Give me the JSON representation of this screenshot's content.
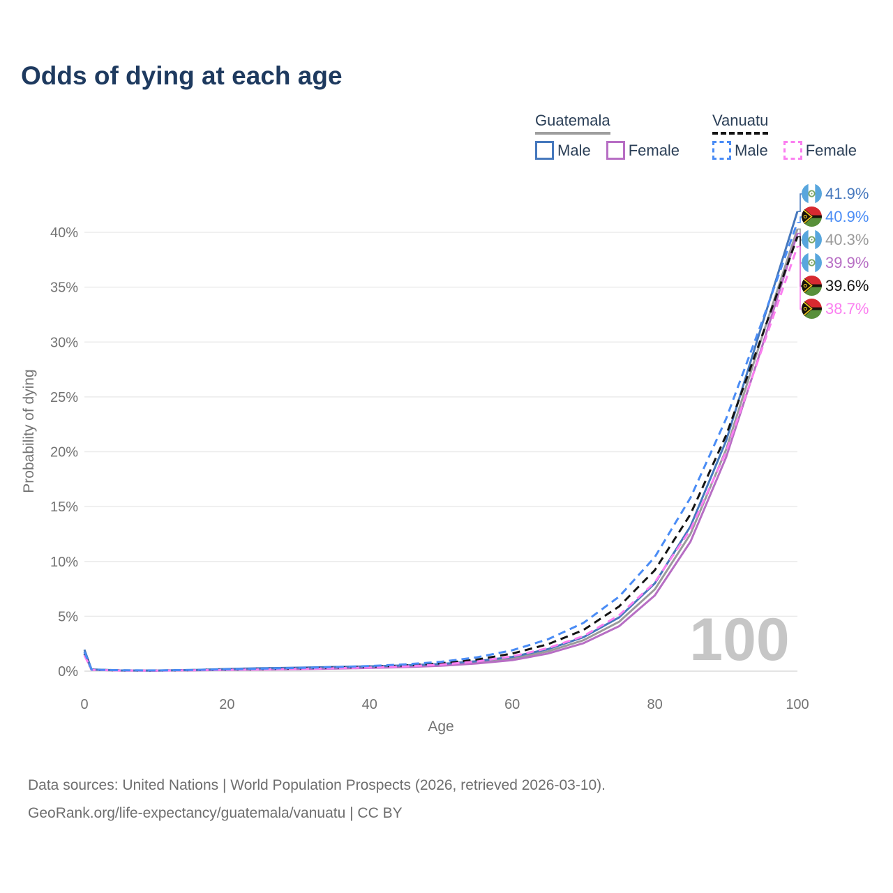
{
  "legend": {
    "countries": [
      {
        "label": "Guatemala",
        "line_style": "solid",
        "underline_color": "#9e9e9e",
        "items": [
          {
            "label": "Male",
            "color": "#4678bd"
          },
          {
            "label": "Female",
            "color": "#b76ec4"
          }
        ]
      },
      {
        "label": "Vanuatu",
        "line_style": "dashed",
        "underline_color": "#141414",
        "items": [
          {
            "label": "Male",
            "color": "#4a8cf5"
          },
          {
            "label": "Female",
            "color": "#fb7ff0"
          }
        ]
      }
    ]
  },
  "chart_data": {
    "type": "line",
    "title": "Odds of dying at each age",
    "xlabel": "Age",
    "ylabel": "Probability of dying",
    "xlim": [
      0,
      100
    ],
    "ylim_pct": [
      0,
      44
    ],
    "xticks": [
      0,
      20,
      40,
      60,
      80,
      100
    ],
    "ytick_values": [
      0,
      5,
      10,
      15,
      20,
      25,
      30,
      35,
      40
    ],
    "ytick_labels": [
      "0%",
      "5%",
      "10%",
      "15%",
      "20%",
      "25%",
      "30%",
      "35%",
      "40%"
    ],
    "grid": "horizontal",
    "legend_position": "top-right",
    "watermark": {
      "text": "100",
      "color": "#c6c6c6"
    },
    "x_ages": [
      0,
      1,
      5,
      10,
      15,
      20,
      25,
      30,
      35,
      40,
      45,
      50,
      55,
      60,
      65,
      70,
      75,
      80,
      85,
      90,
      95,
      100
    ],
    "series": [
      {
        "name": "guatemala-male",
        "country": "Guatemala",
        "sex": "Male",
        "line": "solid",
        "color": "#4678bd",
        "end_label": "41.9%",
        "values_pct": [
          1.95,
          0.16,
          0.07,
          0.06,
          0.1,
          0.2,
          0.27,
          0.32,
          0.38,
          0.44,
          0.52,
          0.65,
          0.9,
          1.3,
          2.0,
          3.1,
          4.9,
          8.0,
          13.2,
          21.0,
          31.5,
          41.9
        ]
      },
      {
        "name": "guatemala-female",
        "country": "Guatemala",
        "sex": "Female",
        "line": "solid",
        "color": "#b76ec4",
        "end_label": "39.9%",
        "values_pct": [
          1.6,
          0.13,
          0.055,
          0.05,
          0.07,
          0.11,
          0.14,
          0.18,
          0.23,
          0.29,
          0.37,
          0.49,
          0.7,
          1.0,
          1.6,
          2.55,
          4.1,
          6.9,
          11.8,
          19.5,
          29.5,
          39.9
        ]
      },
      {
        "name": "guatemala-both",
        "country": "Guatemala",
        "sex": "Both",
        "line": "solid",
        "color": "#9b9b9b",
        "end_label": "40.3%",
        "values_pct": [
          1.78,
          0.145,
          0.06,
          0.055,
          0.085,
          0.155,
          0.205,
          0.25,
          0.3,
          0.36,
          0.44,
          0.57,
          0.8,
          1.15,
          1.8,
          2.82,
          4.5,
          7.45,
          12.5,
          20.2,
          30.4,
          40.3
        ]
      },
      {
        "name": "vanuatu-male",
        "country": "Vanuatu",
        "sex": "Male",
        "line": "dashed",
        "color": "#4a8cf5",
        "end_label": "40.9%",
        "values_pct": [
          1.75,
          0.14,
          0.08,
          0.07,
          0.11,
          0.17,
          0.23,
          0.29,
          0.37,
          0.47,
          0.62,
          0.85,
          1.25,
          1.9,
          2.9,
          4.4,
          6.8,
          10.4,
          15.8,
          23.0,
          31.8,
          40.9
        ]
      },
      {
        "name": "vanuatu-female",
        "country": "Vanuatu",
        "sex": "Female",
        "line": "dashed",
        "color": "#fb7ff0",
        "end_label": "38.7%",
        "values_pct": [
          1.45,
          0.12,
          0.06,
          0.05,
          0.08,
          0.12,
          0.16,
          0.2,
          0.26,
          0.33,
          0.43,
          0.6,
          0.88,
          1.35,
          2.1,
          3.2,
          5.1,
          8.1,
          12.9,
          20.0,
          29.3,
          38.7
        ]
      },
      {
        "name": "vanuatu-both",
        "country": "Vanuatu",
        "sex": "Both",
        "line": "dashed",
        "color": "#141414",
        "end_label": "39.6%",
        "values_pct": [
          1.6,
          0.13,
          0.07,
          0.06,
          0.095,
          0.145,
          0.195,
          0.245,
          0.315,
          0.4,
          0.52,
          0.72,
          1.05,
          1.6,
          2.45,
          3.75,
          5.9,
          9.2,
          14.3,
          21.5,
          30.5,
          39.6
        ]
      }
    ],
    "end_labels": [
      {
        "series": "guatemala-male",
        "flag": "guatemala",
        "text": "41.9%",
        "color": "#4678bd"
      },
      {
        "series": "vanuatu-male",
        "flag": "vanuatu",
        "text": "40.9%",
        "color": "#4a8cf5"
      },
      {
        "series": "guatemala-both",
        "flag": "guatemala",
        "text": "40.3%",
        "color": "#9b9b9b"
      },
      {
        "series": "guatemala-female",
        "flag": "guatemala",
        "text": "39.9%",
        "color": "#b76ec4"
      },
      {
        "series": "vanuatu-both",
        "flag": "vanuatu",
        "text": "39.6%",
        "color": "#141414"
      },
      {
        "series": "vanuatu-female",
        "flag": "vanuatu",
        "text": "38.7%",
        "color": "#fb7ff0"
      }
    ]
  },
  "footer": {
    "line1": "Data sources: United Nations | World Population Prospects (2026, retrieved 2026-03-10).",
    "line2": "GeoRank.org/life-expectancy/guatemala/vanuatu | CC BY"
  }
}
